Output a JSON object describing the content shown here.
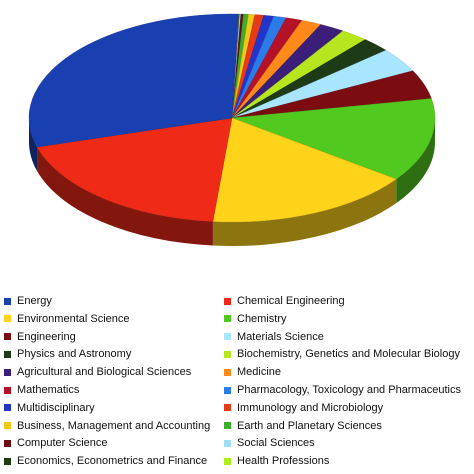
{
  "chart_data": {
    "type": "pie",
    "style": "3d",
    "legend_position": "bottom",
    "slices": [
      {
        "label": "Energy",
        "value": 30.0,
        "color": "#1a3fb0"
      },
      {
        "label": "Chemical Engineering",
        "value": 19.0,
        "color": "#ef2a17"
      },
      {
        "label": "Environmental Science",
        "value": 16.5,
        "color": "#ffd31a"
      },
      {
        "label": "Chemistry",
        "value": 13.0,
        "color": "#52c91e"
      },
      {
        "label": "Engineering",
        "value": 4.5,
        "color": "#7a0c12"
      },
      {
        "label": "Materials Science",
        "value": 3.8,
        "color": "#a8e6ff"
      },
      {
        "label": "Physics and Astronomy",
        "value": 2.3,
        "color": "#1d3b16"
      },
      {
        "label": "Biochemistry, Genetics and Molecular Biology",
        "value": 2.2,
        "color": "#b6e61e"
      },
      {
        "label": "Agricultural and Biological Sciences",
        "value": 2.0,
        "color": "#3b1d7a"
      },
      {
        "label": "Medicine",
        "value": 1.6,
        "color": "#ff8a1a"
      },
      {
        "label": "Mathematics",
        "value": 1.3,
        "color": "#b5122a"
      },
      {
        "label": "Pharmacology, Toxicology and Pharmaceutics",
        "value": 1.0,
        "color": "#2b7be8"
      },
      {
        "label": "Multidisciplinary",
        "value": 0.8,
        "color": "#2434c8"
      },
      {
        "label": "Immunology and Microbiology",
        "value": 0.7,
        "color": "#e83a14"
      },
      {
        "label": "Business, Management and Accounting",
        "value": 0.5,
        "color": "#f2c814"
      },
      {
        "label": "Earth and Planetary Sciences",
        "value": 0.4,
        "color": "#3caf2a"
      },
      {
        "label": "Computer Science",
        "value": 0.2,
        "color": "#6a0a14"
      },
      {
        "label": "Social Sciences",
        "value": 0.1,
        "color": "#9fdcf5"
      },
      {
        "label": "Economics, Econometrics and Finance",
        "value": 0.05,
        "color": "#203a14"
      },
      {
        "label": "Health Professions",
        "value": 0.05,
        "color": "#a8f21a"
      }
    ]
  }
}
